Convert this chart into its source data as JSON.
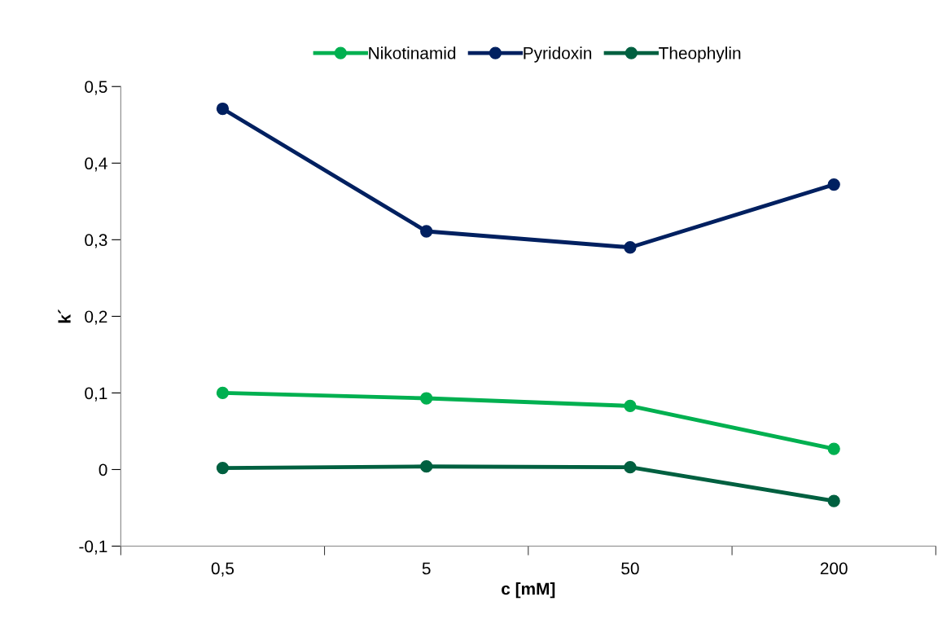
{
  "chart_data": {
    "type": "line",
    "xlabel": "c [mM]",
    "ylabel": "k´",
    "categories": [
      "0,5",
      "5",
      "50",
      "200"
    ],
    "series": [
      {
        "name": "Nikotinamid",
        "color": "#00b050",
        "values": [
          0.1,
          0.093,
          0.083,
          0.027
        ]
      },
      {
        "name": "Pyridoxin",
        "color": "#002060",
        "values": [
          0.471,
          0.311,
          0.29,
          0.372
        ]
      },
      {
        "name": "Theophylin",
        "color": "#006040",
        "values": [
          0.002,
          0.004,
          0.003,
          -0.041
        ]
      }
    ],
    "ylim": [
      -0.1,
      0.5
    ],
    "yticks": [
      {
        "value": -0.1,
        "label": "-0,1"
      },
      0,
      {
        "value": 0.1,
        "label": "0,1"
      },
      {
        "value": 0.2,
        "label": "0,2"
      },
      {
        "value": 0.3,
        "label": "0,3"
      },
      {
        "value": 0.4,
        "label": "0,4"
      },
      {
        "value": 0.5,
        "label": "0,5"
      }
    ],
    "marker": "circle",
    "line_style": "solid",
    "grid": false,
    "legend": "top"
  }
}
